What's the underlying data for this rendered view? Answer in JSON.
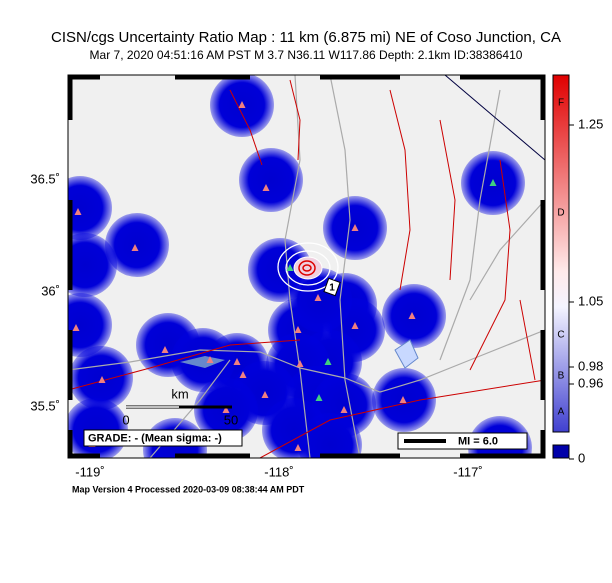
{
  "header": {
    "title": "CISN/cgs Uncertainty Ratio Map : 11 km (6.875 mi) NE of Coso Junction, CA",
    "subtitle": "Mar  7, 2020 04:51:16 AM PST   M 3.7   N36.11 W117.86   Depth: 2.1km   ID:38386410"
  },
  "map": {
    "lat_labels": [
      "36.5˚",
      "36˚",
      "35.5˚"
    ],
    "lon_labels": [
      "-119˚",
      "-118˚",
      "-117˚"
    ],
    "scale_bar": {
      "unit": "km",
      "start": "0",
      "end": "50"
    },
    "grade": "GRADE: - (Mean sigma: -)",
    "mi_legend": "MI = 6.0",
    "epicenter_label": "1"
  },
  "colorbar": {
    "letters": [
      "F",
      "D",
      "C",
      "B",
      "A"
    ],
    "ticks": [
      "1.25",
      "1.05",
      "0.98",
      "0.96",
      "0"
    ]
  },
  "footer": "Map Version 4 Processed 2020-03-09 08:38:44 AM PDT"
}
